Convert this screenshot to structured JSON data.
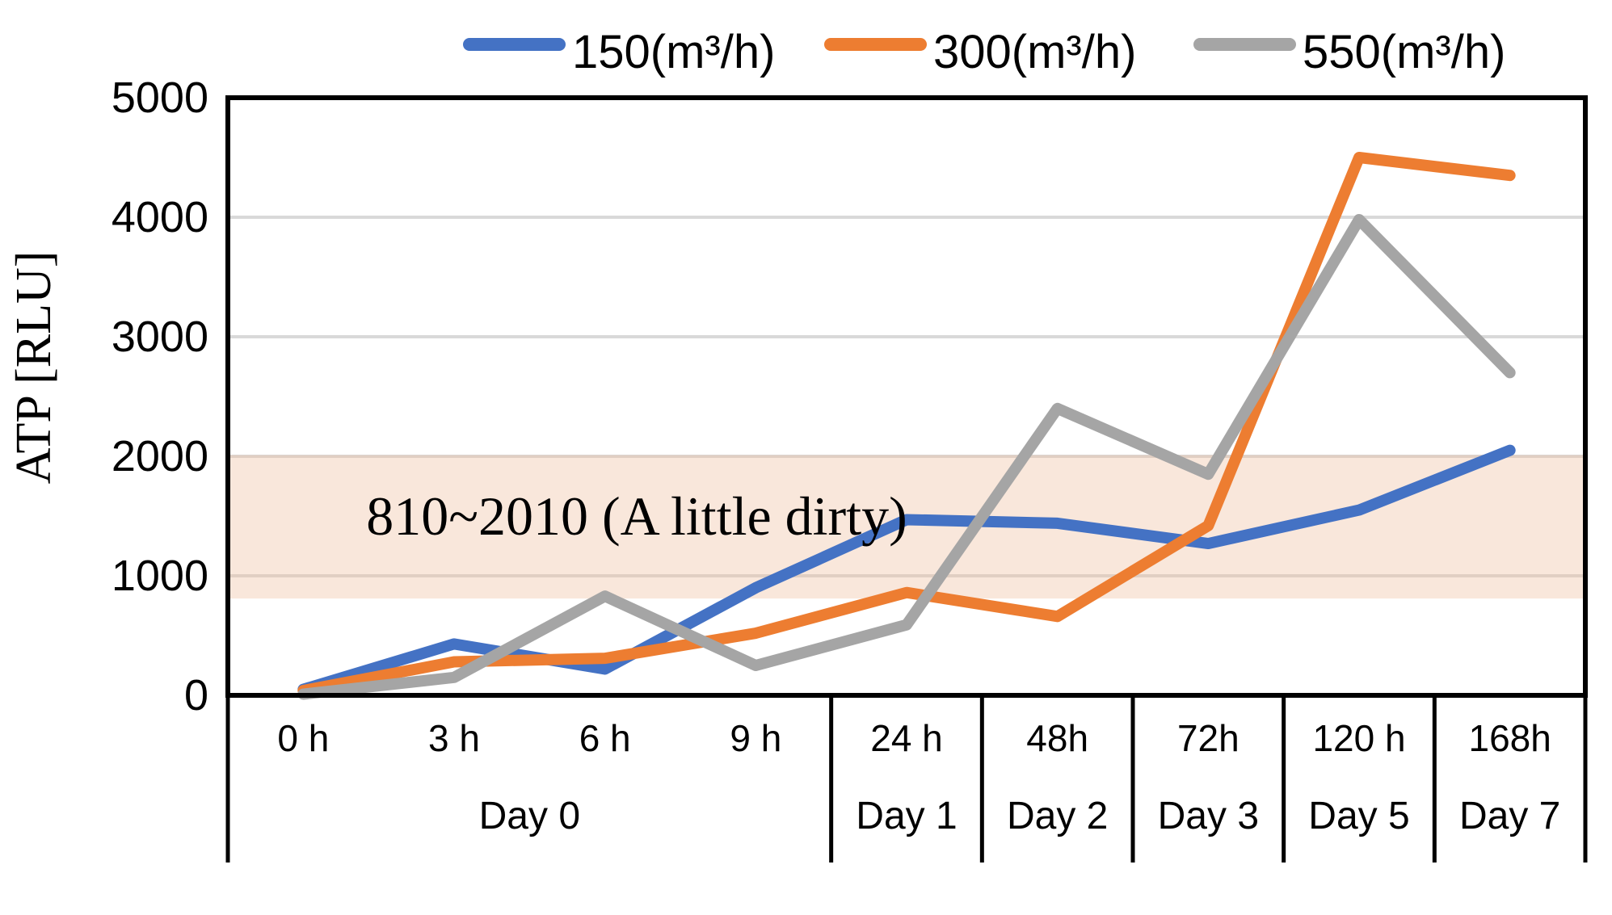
{
  "chart_data": {
    "type": "line",
    "title": "",
    "ylabel": "ATP [RLU]",
    "xlabel": "",
    "ylim": [
      0,
      5000
    ],
    "yticks": [
      0,
      1000,
      2000,
      3000,
      4000,
      5000
    ],
    "grid": true,
    "legend_position": "top",
    "categories": [
      "0 h",
      "3 h",
      "6 h",
      "9 h",
      "24 h",
      "48h",
      "72h",
      "120 h",
      "168h"
    ],
    "day_groups": [
      {
        "label": "Day 0",
        "start": 0,
        "end": 3
      },
      {
        "label": "Day 1",
        "start": 4,
        "end": 4
      },
      {
        "label": "Day 2",
        "start": 5,
        "end": 5
      },
      {
        "label": "Day 3",
        "start": 6,
        "end": 6
      },
      {
        "label": "Day 5",
        "start": 7,
        "end": 7
      },
      {
        "label": "Day 7",
        "start": 8,
        "end": 8
      }
    ],
    "series": [
      {
        "name": "150(m³/h)",
        "color": "#4472C4",
        "values": [
          50,
          430,
          220,
          900,
          1470,
          1440,
          1270,
          1550,
          2050
        ]
      },
      {
        "name": "300(m³/h)",
        "color": "#ED7D31",
        "values": [
          40,
          280,
          310,
          520,
          860,
          660,
          1420,
          4500,
          4350
        ]
      },
      {
        "name": "550(m³/h)",
        "color": "#A5A5A5",
        "values": [
          10,
          150,
          830,
          250,
          590,
          2400,
          1850,
          3980,
          2700
        ]
      }
    ],
    "reference_band": {
      "from": 810,
      "to": 2010,
      "label": "810~2010 (A little dirty)",
      "fill": "rgba(238,192,160,0.38)"
    },
    "colors": {
      "gridline": "#D9D9D9",
      "axis": "#000000",
      "text": "#000000"
    }
  }
}
